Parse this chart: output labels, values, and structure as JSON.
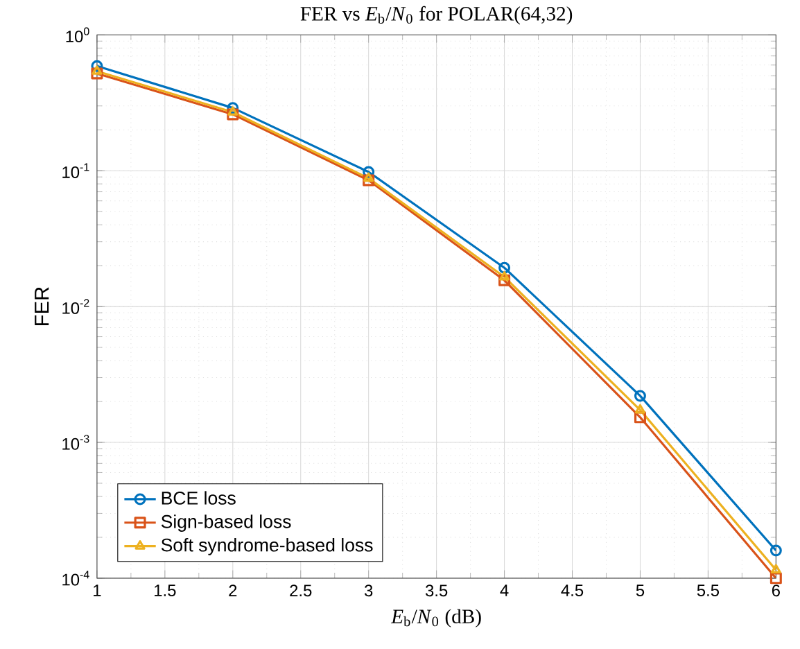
{
  "chart_data": {
    "type": "line",
    "title": "FER vs *E*$_{b}$/*N*$_{0}$ for POLAR(64,32)",
    "xlabel": "*E*$_{b}$/*N*$_{0}$ (dB)",
    "ylabel": "FER",
    "x": [
      1,
      2,
      3,
      4,
      5,
      6
    ],
    "series": [
      {
        "name": "BCE loss",
        "color": "#0072bd",
        "marker": "circle",
        "values": [
          0.59,
          0.29,
          0.098,
          0.0193,
          0.0022,
          0.00016
        ]
      },
      {
        "name": "Sign-based loss",
        "color": "#d95319",
        "marker": "square",
        "values": [
          0.52,
          0.26,
          0.085,
          0.0156,
          0.00153,
          0.0001
        ]
      },
      {
        "name": "Soft syndrome-based loss",
        "color": "#edb120",
        "marker": "triangle",
        "values": [
          0.54,
          0.27,
          0.088,
          0.0165,
          0.00173,
          0.000115
        ]
      }
    ],
    "xlim": [
      1,
      6
    ],
    "xticks": [
      1,
      1.5,
      2,
      2.5,
      3,
      3.5,
      4,
      4.5,
      5,
      5.5,
      6
    ],
    "ylim": [
      0.0001,
      1
    ],
    "yticks": [
      {
        "value": 0.0001,
        "label": "10$^{-4}$"
      },
      {
        "value": 0.001,
        "label": "10$^{-3}$"
      },
      {
        "value": 0.01,
        "label": "10$^{-2}$"
      },
      {
        "value": 0.1,
        "label": "10$^{-1}$"
      },
      {
        "value": 1,
        "label": "10$^{0}$"
      }
    ],
    "log": "y",
    "grid": true,
    "legend": "bottom left",
    "line_style": "solid"
  }
}
